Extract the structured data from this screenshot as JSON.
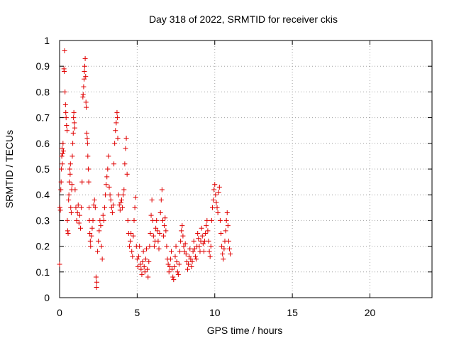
{
  "chart_data": {
    "type": "scatter",
    "title": "Day 318 of 2022, SRMTID for receiver ckis",
    "xlabel": "GPS time / hours",
    "ylabel": "SRMTID / TECUs",
    "xlim": [
      0,
      24
    ],
    "ylim": [
      0,
      1
    ],
    "xticks": [
      0,
      5,
      10,
      15,
      20
    ],
    "xtick_labels": [
      "0",
      "5",
      "10",
      "15",
      "20"
    ],
    "yticks": [
      0,
      0.1,
      0.2,
      0.3,
      0.4,
      0.5,
      0.6,
      0.7,
      0.8,
      0.9,
      1
    ],
    "ytick_labels": [
      "0",
      "0.1",
      "0.2",
      "0.3",
      "0.4",
      "0.5",
      "0.6",
      "0.7",
      "0.8",
      "0.9",
      "1"
    ],
    "grid": true,
    "marker": "plus",
    "color": "#e00000",
    "series": [
      {
        "name": "SRMTID",
        "points": [
          [
            0.0,
            0.13
          ],
          [
            0.02,
            0.35
          ],
          [
            0.05,
            0.34
          ],
          [
            0.08,
            0.42
          ],
          [
            0.1,
            0.45
          ],
          [
            0.12,
            0.5
          ],
          [
            0.14,
            0.55
          ],
          [
            0.16,
            0.58
          ],
          [
            0.18,
            0.52
          ],
          [
            0.2,
            0.56
          ],
          [
            0.22,
            0.6
          ],
          [
            0.25,
            0.57
          ],
          [
            0.28,
            0.89
          ],
          [
            0.3,
            0.88
          ],
          [
            0.32,
            0.96
          ],
          [
            0.35,
            0.8
          ],
          [
            0.38,
            0.75
          ],
          [
            0.4,
            0.72
          ],
          [
            0.42,
            0.7
          ],
          [
            0.45,
            0.67
          ],
          [
            0.48,
            0.65
          ],
          [
            0.5,
            0.3
          ],
          [
            0.52,
            0.26
          ],
          [
            0.55,
            0.25
          ],
          [
            0.58,
            0.38
          ],
          [
            0.6,
            0.4
          ],
          [
            0.62,
            0.45
          ],
          [
            0.65,
            0.5
          ],
          [
            0.68,
            0.48
          ],
          [
            0.7,
            0.52
          ],
          [
            0.72,
            0.35
          ],
          [
            0.75,
            0.33
          ],
          [
            0.78,
            0.42
          ],
          [
            0.8,
            0.44
          ],
          [
            0.82,
            0.55
          ],
          [
            0.85,
            0.6
          ],
          [
            0.88,
            0.64
          ],
          [
            0.9,
            0.7
          ],
          [
            0.92,
            0.72
          ],
          [
            0.95,
            0.68
          ],
          [
            0.98,
            0.66
          ],
          [
            1.0,
            0.42
          ],
          [
            1.05,
            0.35
          ],
          [
            1.1,
            0.3
          ],
          [
            1.15,
            0.33
          ],
          [
            1.2,
            0.36
          ],
          [
            1.25,
            0.29
          ],
          [
            1.3,
            0.32
          ],
          [
            1.35,
            0.27
          ],
          [
            1.4,
            0.35
          ],
          [
            1.45,
            0.45
          ],
          [
            1.5,
            0.78
          ],
          [
            1.52,
            0.79
          ],
          [
            1.55,
            0.82
          ],
          [
            1.58,
            0.85
          ],
          [
            1.6,
            0.88
          ],
          [
            1.62,
            0.9
          ],
          [
            1.65,
            0.93
          ],
          [
            1.68,
            0.86
          ],
          [
            1.7,
            0.76
          ],
          [
            1.72,
            0.74
          ],
          [
            1.75,
            0.64
          ],
          [
            1.78,
            0.62
          ],
          [
            1.8,
            0.6
          ],
          [
            1.82,
            0.55
          ],
          [
            1.85,
            0.5
          ],
          [
            1.88,
            0.45
          ],
          [
            1.9,
            0.35
          ],
          [
            1.92,
            0.3
          ],
          [
            1.95,
            0.25
          ],
          [
            1.98,
            0.22
          ],
          [
            2.0,
            0.2
          ],
          [
            2.05,
            0.24
          ],
          [
            2.1,
            0.27
          ],
          [
            2.15,
            0.3
          ],
          [
            2.2,
            0.36
          ],
          [
            2.25,
            0.38
          ],
          [
            2.3,
            0.35
          ],
          [
            2.35,
            0.08
          ],
          [
            2.38,
            0.04
          ],
          [
            2.4,
            0.06
          ],
          [
            2.45,
            0.18
          ],
          [
            2.5,
            0.22
          ],
          [
            2.55,
            0.26
          ],
          [
            2.6,
            0.3
          ],
          [
            2.65,
            0.28
          ],
          [
            2.7,
            0.2
          ],
          [
            2.75,
            0.15
          ],
          [
            2.8,
            0.32
          ],
          [
            2.85,
            0.3
          ],
          [
            2.9,
            0.35
          ],
          [
            2.95,
            0.4
          ],
          [
            3.0,
            0.44
          ],
          [
            3.05,
            0.47
          ],
          [
            3.1,
            0.5
          ],
          [
            3.15,
            0.55
          ],
          [
            3.2,
            0.43
          ],
          [
            3.25,
            0.4
          ],
          [
            3.3,
            0.38
          ],
          [
            3.35,
            0.35
          ],
          [
            3.4,
            0.33
          ],
          [
            3.45,
            0.36
          ],
          [
            3.5,
            0.52
          ],
          [
            3.55,
            0.6
          ],
          [
            3.6,
            0.65
          ],
          [
            3.65,
            0.68
          ],
          [
            3.7,
            0.72
          ],
          [
            3.72,
            0.7
          ],
          [
            3.75,
            0.62
          ],
          [
            3.8,
            0.4
          ],
          [
            3.85,
            0.36
          ],
          [
            3.9,
            0.34
          ],
          [
            3.95,
            0.37
          ],
          [
            4.0,
            0.38
          ],
          [
            4.05,
            0.35
          ],
          [
            4.1,
            0.4
          ],
          [
            4.15,
            0.42
          ],
          [
            4.2,
            0.52
          ],
          [
            4.25,
            0.58
          ],
          [
            4.3,
            0.62
          ],
          [
            4.35,
            0.48
          ],
          [
            4.4,
            0.3
          ],
          [
            4.45,
            0.25
          ],
          [
            4.5,
            0.2
          ],
          [
            4.55,
            0.22
          ],
          [
            4.6,
            0.25
          ],
          [
            4.65,
            0.18
          ],
          [
            4.7,
            0.16
          ],
          [
            4.75,
            0.24
          ],
          [
            4.8,
            0.3
          ],
          [
            4.85,
            0.35
          ],
          [
            4.9,
            0.39
          ],
          [
            4.95,
            0.2
          ],
          [
            5.0,
            0.15
          ],
          [
            5.05,
            0.12
          ],
          [
            5.1,
            0.16
          ],
          [
            5.15,
            0.2
          ],
          [
            5.2,
            0.13
          ],
          [
            5.25,
            0.11
          ],
          [
            5.3,
            0.09
          ],
          [
            5.35,
            0.14
          ],
          [
            5.4,
            0.18
          ],
          [
            5.45,
            0.12
          ],
          [
            5.5,
            0.1
          ],
          [
            5.55,
            0.15
          ],
          [
            5.6,
            0.19
          ],
          [
            5.65,
            0.11
          ],
          [
            5.7,
            0.08
          ],
          [
            5.75,
            0.14
          ],
          [
            5.8,
            0.2
          ],
          [
            5.85,
            0.25
          ],
          [
            5.9,
            0.32
          ],
          [
            5.95,
            0.38
          ],
          [
            6.0,
            0.3
          ],
          [
            6.05,
            0.24
          ],
          [
            6.1,
            0.2
          ],
          [
            6.15,
            0.22
          ],
          [
            6.2,
            0.27
          ],
          [
            6.25,
            0.3
          ],
          [
            6.3,
            0.26
          ],
          [
            6.35,
            0.22
          ],
          [
            6.4,
            0.19
          ],
          [
            6.45,
            0.25
          ],
          [
            6.5,
            0.33
          ],
          [
            6.55,
            0.38
          ],
          [
            6.6,
            0.42
          ],
          [
            6.65,
            0.3
          ],
          [
            6.7,
            0.24
          ],
          [
            6.75,
            0.28
          ],
          [
            6.8,
            0.31
          ],
          [
            6.85,
            0.26
          ],
          [
            6.9,
            0.2
          ],
          [
            6.95,
            0.15
          ],
          [
            7.0,
            0.13
          ],
          [
            7.05,
            0.1
          ],
          [
            7.1,
            0.12
          ],
          [
            7.15,
            0.15
          ],
          [
            7.2,
            0.18
          ],
          [
            7.25,
            0.11
          ],
          [
            7.3,
            0.08
          ],
          [
            7.35,
            0.07
          ],
          [
            7.4,
            0.12
          ],
          [
            7.45,
            0.16
          ],
          [
            7.5,
            0.2
          ],
          [
            7.55,
            0.14
          ],
          [
            7.6,
            0.1
          ],
          [
            7.65,
            0.09
          ],
          [
            7.7,
            0.13
          ],
          [
            7.75,
            0.18
          ],
          [
            7.8,
            0.22
          ],
          [
            7.85,
            0.26
          ],
          [
            7.9,
            0.28
          ],
          [
            7.95,
            0.24
          ],
          [
            8.0,
            0.2
          ],
          [
            8.05,
            0.18
          ],
          [
            8.1,
            0.21
          ],
          [
            8.15,
            0.17
          ],
          [
            8.2,
            0.14
          ],
          [
            8.25,
            0.11
          ],
          [
            8.3,
            0.13
          ],
          [
            8.35,
            0.16
          ],
          [
            8.4,
            0.19
          ],
          [
            8.45,
            0.15
          ],
          [
            8.5,
            0.12
          ],
          [
            8.55,
            0.14
          ],
          [
            8.6,
            0.18
          ],
          [
            8.65,
            0.22
          ],
          [
            8.7,
            0.19
          ],
          [
            8.75,
            0.16
          ],
          [
            8.8,
            0.15
          ],
          [
            8.85,
            0.2
          ],
          [
            8.9,
            0.25
          ],
          [
            8.95,
            0.23
          ],
          [
            9.0,
            0.2
          ],
          [
            9.05,
            0.18
          ],
          [
            9.1,
            0.22
          ],
          [
            9.15,
            0.27
          ],
          [
            9.2,
            0.24
          ],
          [
            9.25,
            0.21
          ],
          [
            9.3,
            0.18
          ],
          [
            9.35,
            0.22
          ],
          [
            9.4,
            0.25
          ],
          [
            9.45,
            0.28
          ],
          [
            9.5,
            0.3
          ],
          [
            9.55,
            0.26
          ],
          [
            9.6,
            0.22
          ],
          [
            9.65,
            0.18
          ],
          [
            9.7,
            0.16
          ],
          [
            9.75,
            0.2
          ],
          [
            9.8,
            0.3
          ],
          [
            9.85,
            0.35
          ],
          [
            9.9,
            0.38
          ],
          [
            9.95,
            0.42
          ],
          [
            10.0,
            0.44
          ],
          [
            10.05,
            0.4
          ],
          [
            10.1,
            0.37
          ],
          [
            10.15,
            0.35
          ],
          [
            10.2,
            0.33
          ],
          [
            10.25,
            0.41
          ],
          [
            10.3,
            0.43
          ],
          [
            10.35,
            0.3
          ],
          [
            10.4,
            0.25
          ],
          [
            10.45,
            0.2
          ],
          [
            10.5,
            0.17
          ],
          [
            10.55,
            0.15
          ],
          [
            10.6,
            0.19
          ],
          [
            10.65,
            0.22
          ],
          [
            10.7,
            0.26
          ],
          [
            10.75,
            0.3
          ],
          [
            10.8,
            0.33
          ],
          [
            10.85,
            0.28
          ],
          [
            10.9,
            0.22
          ],
          [
            10.95,
            0.19
          ],
          [
            11.0,
            0.17
          ]
        ]
      }
    ]
  }
}
